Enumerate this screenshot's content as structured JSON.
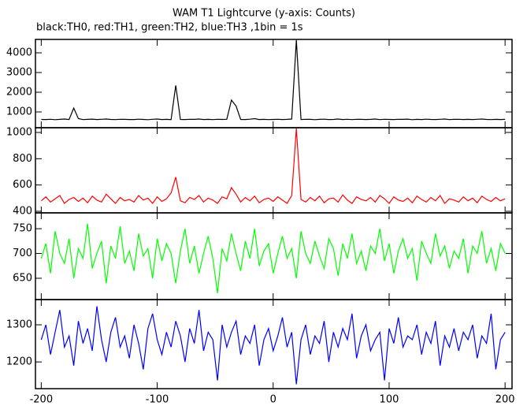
{
  "chart_data": [
    {
      "type": "line",
      "title": "WAM T1 Lightcurve (y-axis: Counts)",
      "subtitle": "black:TH0, red:TH1, green:TH2, blue:TH3 ,1bin = 1s",
      "x": [
        -200,
        -196,
        -192,
        -188,
        -184,
        -180,
        -176,
        -172,
        -168,
        -164,
        -160,
        -156,
        -152,
        -148,
        -144,
        -140,
        -136,
        -132,
        -128,
        -124,
        -120,
        -116,
        -112,
        -108,
        -104,
        -100,
        -96,
        -92,
        -88,
        -84,
        -80,
        -76,
        -72,
        -68,
        -64,
        -60,
        -56,
        -52,
        -48,
        -44,
        -40,
        -36,
        -32,
        -28,
        -24,
        -20,
        -16,
        -12,
        -8,
        -4,
        0,
        4,
        8,
        12,
        16,
        20,
        24,
        28,
        32,
        36,
        40,
        44,
        48,
        52,
        56,
        60,
        64,
        68,
        72,
        76,
        80,
        84,
        88,
        92,
        96,
        100,
        104,
        108,
        112,
        116,
        120,
        124,
        128,
        132,
        136,
        140,
        144,
        148,
        152,
        156,
        160,
        164,
        168,
        172,
        176,
        180,
        184,
        188,
        192,
        196,
        200
      ],
      "series": [
        {
          "color": "#000000",
          "values": [
            620,
            615,
            630,
            610,
            625,
            640,
            618,
            1200,
            660,
            612,
            622,
            635,
            615,
            628,
            640,
            620,
            612,
            630,
            625,
            618,
            615,
            632,
            620,
            610,
            627,
            640,
            618,
            625,
            612,
            2350,
            620,
            615,
            630,
            622,
            640,
            618,
            625,
            612,
            630,
            620,
            628,
            1600,
            1300,
            620,
            615,
            632,
            660,
            618,
            625,
            612,
            620,
            630,
            618,
            625,
            640,
            4650,
            615,
            628,
            622,
            610,
            625,
            632,
            618,
            620,
            640,
            615,
            628,
            612,
            630,
            622,
            618,
            625,
            640,
            612,
            630,
            620,
            615,
            628,
            622,
            635,
            610,
            625,
            618,
            632,
            620,
            615,
            628,
            640,
            612,
            625,
            630,
            618,
            622,
            615,
            628,
            640,
            620,
            612,
            625,
            618,
            622
          ]
        }
      ],
      "xlim": [
        -205,
        206
      ],
      "ylim": [
        200,
        4680
      ],
      "yticks": [
        1000,
        2000,
        3000,
        4000
      ]
    },
    {
      "type": "line",
      "x": [
        -200,
        -196,
        -192,
        -188,
        -184,
        -180,
        -176,
        -172,
        -168,
        -164,
        -160,
        -156,
        -152,
        -148,
        -144,
        -140,
        -136,
        -132,
        -128,
        -124,
        -120,
        -116,
        -112,
        -108,
        -104,
        -100,
        -96,
        -92,
        -88,
        -84,
        -80,
        -76,
        -72,
        -68,
        -64,
        -60,
        -56,
        -52,
        -48,
        -44,
        -40,
        -36,
        -32,
        -28,
        -24,
        -20,
        -16,
        -12,
        -8,
        -4,
        0,
        4,
        8,
        12,
        16,
        20,
        24,
        28,
        32,
        36,
        40,
        44,
        48,
        52,
        56,
        60,
        64,
        68,
        72,
        76,
        80,
        84,
        88,
        92,
        96,
        100,
        104,
        108,
        112,
        116,
        120,
        124,
        128,
        132,
        136,
        140,
        144,
        148,
        152,
        156,
        160,
        164,
        168,
        172,
        176,
        180,
        184,
        188,
        192,
        196,
        200
      ],
      "series": [
        {
          "color": "#ff0000",
          "values": [
            480,
            510,
            470,
            495,
            520,
            460,
            490,
            505,
            475,
            500,
            465,
            515,
            485,
            470,
            530,
            495,
            460,
            505,
            480,
            490,
            470,
            520,
            485,
            500,
            460,
            510,
            475,
            495,
            540,
            660,
            480,
            465,
            505,
            490,
            520,
            470,
            500,
            485,
            460,
            510,
            495,
            580,
            530,
            470,
            505,
            480,
            515,
            465,
            490,
            500,
            475,
            510,
            485,
            460,
            520,
            1030,
            490,
            470,
            505,
            480,
            515,
            465,
            495,
            500,
            470,
            525,
            485,
            460,
            510,
            490,
            480,
            505,
            470,
            520,
            495,
            460,
            510,
            485,
            475,
            500,
            465,
            515,
            490,
            470,
            505,
            480,
            520,
            460,
            495,
            485,
            470,
            510,
            480,
            500,
            465,
            515,
            490,
            475,
            505,
            480,
            495
          ]
        }
      ],
      "xlim": [
        -205,
        206
      ],
      "ylim": [
        388,
        1036
      ],
      "yticks": [
        400,
        600,
        800,
        1000
      ]
    },
    {
      "type": "line",
      "x": [
        -200,
        -196,
        -192,
        -188,
        -184,
        -180,
        -176,
        -172,
        -168,
        -164,
        -160,
        -156,
        -152,
        -148,
        -144,
        -140,
        -136,
        -132,
        -128,
        -124,
        -120,
        -116,
        -112,
        -108,
        -104,
        -100,
        -96,
        -92,
        -88,
        -84,
        -80,
        -76,
        -72,
        -68,
        -64,
        -60,
        -56,
        -52,
        -48,
        -44,
        -40,
        -36,
        -32,
        -28,
        -24,
        -20,
        -16,
        -12,
        -8,
        -4,
        0,
        4,
        8,
        12,
        16,
        20,
        24,
        28,
        32,
        36,
        40,
        44,
        48,
        52,
        56,
        60,
        64,
        68,
        72,
        76,
        80,
        84,
        88,
        92,
        96,
        100,
        104,
        108,
        112,
        116,
        120,
        124,
        128,
        132,
        136,
        140,
        144,
        148,
        152,
        156,
        160,
        164,
        168,
        172,
        176,
        180,
        184,
        188,
        192,
        196,
        200
      ],
      "series": [
        {
          "color": "#00ff00",
          "values": [
            690,
            720,
            660,
            745,
            700,
            680,
            730,
            650,
            710,
            690,
            760,
            670,
            700,
            725,
            640,
            715,
            690,
            755,
            680,
            705,
            665,
            740,
            695,
            710,
            650,
            730,
            685,
            720,
            700,
            640,
            705,
            750,
            680,
            715,
            660,
            700,
            735,
            690,
            620,
            710,
            685,
            740,
            700,
            665,
            725,
            690,
            750,
            675,
            705,
            720,
            660,
            700,
            735,
            690,
            710,
            650,
            745,
            700,
            680,
            725,
            695,
            670,
            730,
            710,
            655,
            720,
            690,
            740,
            680,
            705,
            665,
            715,
            700,
            750,
            685,
            720,
            660,
            705,
            730,
            690,
            710,
            645,
            725,
            700,
            680,
            740,
            695,
            715,
            670,
            705,
            690,
            730,
            660,
            715,
            700,
            745,
            680,
            710,
            665,
            720,
            700
          ]
        }
      ],
      "xlim": [
        -205,
        206
      ],
      "ylim": [
        607,
        782
      ],
      "yticks": [
        650,
        700,
        750
      ]
    },
    {
      "type": "line",
      "x": [
        -200,
        -196,
        -192,
        -188,
        -184,
        -180,
        -176,
        -172,
        -168,
        -164,
        -160,
        -156,
        -152,
        -148,
        -144,
        -140,
        -136,
        -132,
        -128,
        -124,
        -120,
        -116,
        -112,
        -108,
        -104,
        -100,
        -96,
        -92,
        -88,
        -84,
        -80,
        -76,
        -72,
        -68,
        -64,
        -60,
        -56,
        -52,
        -48,
        -44,
        -40,
        -36,
        -32,
        -28,
        -24,
        -20,
        -16,
        -12,
        -8,
        -4,
        0,
        4,
        8,
        12,
        16,
        20,
        24,
        28,
        32,
        36,
        40,
        44,
        48,
        52,
        56,
        60,
        64,
        68,
        72,
        76,
        80,
        84,
        88,
        92,
        96,
        100,
        104,
        108,
        112,
        116,
        120,
        124,
        128,
        132,
        136,
        140,
        144,
        148,
        152,
        156,
        160,
        164,
        168,
        172,
        176,
        180,
        184,
        188,
        192,
        196,
        200
      ],
      "series": [
        {
          "color": "#0000ff",
          "values": [
            1260,
            1300,
            1220,
            1280,
            1340,
            1240,
            1270,
            1190,
            1310,
            1250,
            1290,
            1230,
            1350,
            1260,
            1200,
            1280,
            1320,
            1240,
            1270,
            1210,
            1300,
            1250,
            1180,
            1290,
            1330,
            1260,
            1220,
            1280,
            1240,
            1310,
            1270,
            1200,
            1290,
            1250,
            1340,
            1230,
            1280,
            1260,
            1150,
            1300,
            1240,
            1280,
            1310,
            1220,
            1270,
            1250,
            1300,
            1190,
            1260,
            1290,
            1230,
            1270,
            1320,
            1240,
            1280,
            1140,
            1260,
            1300,
            1220,
            1270,
            1250,
            1310,
            1200,
            1280,
            1240,
            1290,
            1260,
            1330,
            1210,
            1270,
            1300,
            1230,
            1260,
            1280,
            1150,
            1290,
            1250,
            1320,
            1240,
            1270,
            1260,
            1300,
            1220,
            1280,
            1250,
            1310,
            1190,
            1270,
            1240,
            1290,
            1230,
            1280,
            1260,
            1300,
            1210,
            1270,
            1250,
            1330,
            1180,
            1260,
            1280
          ]
        }
      ],
      "xlim": [
        -205,
        206
      ],
      "ylim": [
        1128,
        1368
      ],
      "yticks": [
        1200,
        1300
      ],
      "xticks": [
        -200,
        -100,
        0,
        100,
        200
      ]
    }
  ]
}
